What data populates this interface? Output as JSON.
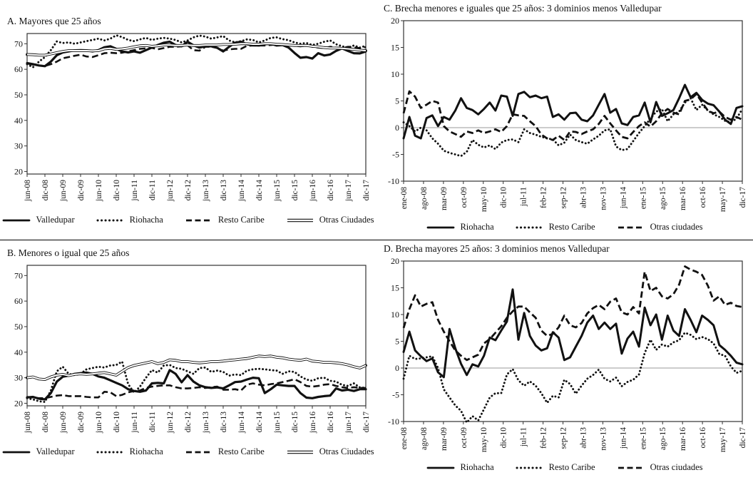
{
  "figure_title": "",
  "colors": {
    "line": "#111111",
    "zero_gridline": "#9a9a9a",
    "frame": "#333333",
    "background": "#ffffff"
  },
  "chart_data": [
    {
      "type": "line",
      "title": "A. Mayores que 25 años",
      "xlabel": "",
      "ylabel": "",
      "ylim": [
        19,
        74
      ],
      "yticks": [
        70,
        60,
        50,
        40,
        30,
        20
      ],
      "zero_gridline": false,
      "legend_position": "bottom",
      "x_tick_labels": [
        "jun-08",
        "dic-08",
        "jun-09",
        "dic-09",
        "jun-10",
        "dic-10",
        "jun-11",
        "dic-11",
        "jun-12",
        "dic-12",
        "jun-13",
        "dic-13",
        "jun-14",
        "dic-14",
        "jun-15",
        "dic-15",
        "jun-16",
        "dic-16",
        "jun-17",
        "dic-17"
      ],
      "series": [
        {
          "name": "Valledupar",
          "line_style": "solid",
          "line_width": 3.2,
          "values": [
            62.4,
            62.0,
            61.5,
            61.2,
            63.0,
            65.5,
            66.6,
            67.0,
            67.4,
            67.5,
            67.4,
            67.0,
            67.5,
            68.6,
            69.0,
            68.0,
            67.0,
            66.6,
            67.0,
            66.5,
            67.5,
            68.5,
            69.5,
            70.4,
            70.8,
            69.5,
            69.0,
            70.8,
            69.4,
            68.5,
            69.0,
            69.0,
            68.4,
            67.0,
            68.8,
            70.4,
            70.8,
            69.8,
            69.4,
            69.3,
            69.8,
            70.0,
            69.3,
            69.5,
            68.5,
            66.4,
            64.5,
            64.8,
            64.2,
            66.3,
            65.4,
            65.8,
            67.2,
            68.2,
            67.2,
            66.3,
            66.2,
            67.0
          ]
        },
        {
          "name": "Riohacha",
          "line_style": "dotted",
          "line_width": 2.9,
          "values": [
            62.0,
            60.8,
            63.0,
            64.8,
            67.5,
            70.9,
            70.3,
            70.5,
            70.0,
            70.5,
            71.0,
            71.5,
            72.0,
            71.3,
            72.0,
            73.3,
            72.6,
            71.5,
            71.0,
            71.7,
            72.3,
            71.5,
            72.0,
            72.3,
            72.0,
            71.5,
            70.5,
            71.3,
            72.5,
            73.2,
            72.8,
            72.0,
            72.5,
            73.0,
            71.3,
            70.5,
            71.0,
            71.7,
            71.5,
            70.5,
            71.3,
            72.3,
            72.5,
            71.8,
            71.4,
            70.5,
            70.0,
            70.3,
            69.5,
            70.0,
            70.8,
            71.3,
            69.8,
            69.0,
            68.5,
            69.3,
            68.5,
            69.2
          ]
        },
        {
          "name": "Resto Caribe",
          "line_style": "dashed",
          "line_width": 2.6,
          "values": [
            62.3,
            61.8,
            61.5,
            61.3,
            62.0,
            63.0,
            64.3,
            64.8,
            65.3,
            65.7,
            65.0,
            64.8,
            65.5,
            66.3,
            66.5,
            66.3,
            66.5,
            67.0,
            67.5,
            68.0,
            68.2,
            68.4,
            67.8,
            68.3,
            68.8,
            68.8,
            69.0,
            69.4,
            67.5,
            67.3,
            68.8,
            68.8,
            68.4,
            67.3,
            67.8,
            68.0,
            68.0,
            69.2,
            69.3,
            69.3,
            69.3,
            69.5,
            69.7,
            69.5,
            69.3,
            69.2,
            69.0,
            69.3,
            68.8,
            68.5,
            68.3,
            68.8,
            68.5,
            68.3,
            68.8,
            68.5,
            68.3,
            68.7
          ]
        },
        {
          "name": "Otras Ciudades",
          "line_style": "double",
          "line_width": 3.8,
          "values": [
            65.8,
            65.7,
            65.5,
            65.5,
            66.0,
            66.5,
            67.0,
            67.3,
            67.3,
            67.3,
            67.3,
            67.2,
            67.3,
            68.0,
            68.2,
            67.8,
            68.0,
            68.3,
            68.8,
            69.2,
            69.3,
            69.0,
            69.2,
            69.5,
            69.5,
            69.3,
            69.3,
            69.5,
            69.3,
            69.3,
            69.5,
            69.5,
            69.5,
            69.7,
            69.7,
            69.8,
            70.0,
            70.0,
            69.8,
            69.8,
            70.0,
            70.0,
            69.8,
            69.7,
            69.5,
            69.3,
            69.3,
            69.3,
            69.0,
            68.8,
            68.5,
            68.3,
            68.3,
            68.2,
            68.0,
            67.8,
            67.5,
            67.3
          ]
        }
      ]
    },
    {
      "type": "line",
      "title": "B. Menores o igual que 25 años",
      "xlabel": "",
      "ylabel": "",
      "ylim": [
        19,
        74
      ],
      "yticks": [
        70,
        60,
        50,
        40,
        30,
        20
      ],
      "zero_gridline": false,
      "legend_position": "bottom",
      "x_tick_labels": [
        "jun-08",
        "dic-08",
        "jun-09",
        "dic-09",
        "jun-10",
        "dic-10",
        "jun-11",
        "dic-11",
        "jun-12",
        "dic-12",
        "jun-13",
        "dic-13",
        "jun-14",
        "dic-14",
        "jun-15",
        "dic-15",
        "jun-16",
        "dic-16",
        "jun-17",
        "dic-17"
      ],
      "series": [
        {
          "name": "Valledupar",
          "line_style": "solid",
          "line_width": 3.2,
          "values": [
            22.3,
            22.5,
            21.8,
            21.5,
            24.0,
            28.5,
            30.4,
            30.8,
            31.5,
            31.8,
            32.0,
            31.5,
            30.5,
            30.0,
            29.0,
            28.0,
            27.0,
            25.5,
            24.8,
            24.5,
            25.0,
            27.8,
            28.0,
            27.8,
            33.0,
            31.5,
            28.2,
            31.0,
            28.5,
            27.0,
            26.3,
            26.0,
            26.2,
            25.8,
            27.0,
            28.3,
            28.5,
            29.3,
            30.0,
            29.8,
            24.0,
            25.5,
            27.3,
            27.0,
            26.8,
            26.8,
            24.0,
            22.2,
            22.0,
            22.5,
            22.8,
            23.0,
            25.8,
            25.0,
            25.3,
            24.8,
            25.5,
            25.5
          ]
        },
        {
          "name": "Riohacha",
          "line_style": "dotted",
          "line_width": 2.9,
          "values": [
            22.0,
            21.5,
            20.8,
            20.5,
            25.0,
            32.5,
            34.3,
            31.5,
            31.0,
            31.5,
            33.3,
            33.8,
            34.3,
            34.0,
            34.8,
            35.0,
            36.3,
            27.5,
            24.2,
            26.5,
            30.0,
            33.0,
            32.0,
            34.8,
            35.0,
            33.8,
            33.5,
            32.5,
            31.5,
            33.8,
            34.0,
            32.3,
            32.8,
            32.3,
            30.8,
            31.3,
            31.0,
            32.8,
            33.3,
            33.5,
            33.3,
            33.0,
            32.8,
            31.5,
            32.5,
            32.3,
            30.5,
            29.3,
            28.8,
            29.8,
            30.0,
            28.8,
            28.5,
            27.2,
            26.8,
            27.8,
            26.2,
            26.0
          ]
        },
        {
          "name": "Resto Caribe",
          "line_style": "dashed",
          "line_width": 2.6,
          "values": [
            22.5,
            22.3,
            22.0,
            22.0,
            22.5,
            23.0,
            23.2,
            22.8,
            22.8,
            22.8,
            22.5,
            22.3,
            22.3,
            24.5,
            24.3,
            22.8,
            23.3,
            24.3,
            24.8,
            25.0,
            26.0,
            26.5,
            26.8,
            27.0,
            27.0,
            26.3,
            25.8,
            25.8,
            26.0,
            26.3,
            26.0,
            26.3,
            26.5,
            25.3,
            25.3,
            25.5,
            25.0,
            27.3,
            27.8,
            27.3,
            27.0,
            27.5,
            27.8,
            28.3,
            28.8,
            29.4,
            28.3,
            26.8,
            26.5,
            26.8,
            27.3,
            27.5,
            26.8,
            26.3,
            26.0,
            26.3,
            26.0,
            26.0
          ]
        },
        {
          "name": "Otras Ciudades",
          "line_style": "double",
          "line_width": 3.8,
          "values": [
            30.0,
            30.3,
            29.5,
            29.3,
            30.3,
            31.0,
            31.3,
            30.8,
            31.3,
            31.5,
            31.3,
            31.5,
            31.8,
            32.0,
            31.5,
            31.0,
            32.5,
            34.0,
            34.8,
            35.3,
            35.8,
            36.3,
            35.5,
            36.0,
            37.0,
            36.8,
            36.3,
            36.3,
            36.0,
            35.8,
            36.0,
            36.3,
            36.3,
            36.5,
            36.8,
            37.0,
            37.3,
            37.5,
            38.0,
            38.5,
            38.3,
            38.5,
            38.0,
            37.8,
            37.3,
            37.0,
            36.8,
            37.3,
            36.5,
            36.3,
            36.0,
            36.0,
            35.8,
            35.5,
            35.0,
            34.3,
            33.8,
            34.8
          ]
        }
      ]
    },
    {
      "type": "line",
      "title": "C. Brecha menores e iguales que 25 años: 3 dominios menos Valledupar",
      "xlabel": "",
      "ylabel": "",
      "ylim": [
        -10,
        20
      ],
      "yticks": [
        20,
        15,
        10,
        5,
        0,
        -5,
        -10
      ],
      "zero_gridline": true,
      "legend_position": "bottom",
      "x_tick_labels": [
        "ene-08",
        "ago-08",
        "mar-09",
        "oct-09",
        "may-10",
        "dic-10",
        "jul-11",
        "feb-12",
        "sep-12",
        "abr-13",
        "nov-13",
        "jun-14",
        "ene-15",
        "ago-15",
        "mar-16",
        "oct-16",
        "may-17",
        "dic-17"
      ],
      "series": [
        {
          "name": "Riohacha",
          "line_style": "solid",
          "line_width": 3.0,
          "values": [
            -2.0,
            2.0,
            -1.5,
            -2.0,
            1.8,
            2.3,
            0.3,
            2.0,
            1.5,
            3.2,
            5.5,
            3.7,
            3.3,
            2.5,
            3.5,
            4.7,
            3.2,
            6.0,
            5.8,
            2.2,
            6.3,
            6.7,
            5.7,
            6.0,
            5.5,
            5.8,
            2.0,
            2.5,
            1.5,
            2.7,
            2.8,
            1.5,
            1.2,
            2.3,
            4.3,
            6.3,
            2.8,
            3.5,
            0.8,
            0.5,
            2.0,
            2.3,
            4.7,
            1.0,
            4.8,
            2.2,
            2.7,
            3.3,
            5.5,
            8.0,
            5.7,
            6.5,
            5.2,
            4.5,
            4.2,
            3.0,
            1.5,
            0.7,
            3.7,
            4.0
          ]
        },
        {
          "name": "Resto Caribe",
          "line_style": "dotted",
          "line_width": 2.9,
          "values": [
            1.0,
            0.3,
            -0.7,
            0.0,
            -0.5,
            -2.0,
            -3.0,
            -4.3,
            -4.7,
            -5.0,
            -5.3,
            -4.5,
            -2.3,
            -3.2,
            -3.7,
            -3.3,
            -4.0,
            -2.8,
            -2.3,
            -2.2,
            -2.7,
            -0.3,
            -1.0,
            -1.3,
            -1.7,
            -2.0,
            -2.2,
            -3.3,
            -2.8,
            -1.3,
            -2.3,
            -2.7,
            -3.0,
            -2.2,
            -1.5,
            -0.5,
            -0.3,
            -3.5,
            -4.2,
            -4.0,
            -2.5,
            -1.0,
            0.3,
            1.7,
            3.0,
            3.5,
            1.2,
            2.5,
            3.0,
            4.7,
            5.5,
            3.3,
            4.3,
            3.2,
            2.5,
            2.0,
            1.3,
            1.0,
            1.7,
            3.5
          ]
        },
        {
          "name": "Otras ciudades",
          "line_style": "dashed",
          "line_width": 2.8,
          "values": [
            2.7,
            6.8,
            5.8,
            3.7,
            4.3,
            5.0,
            4.7,
            0.3,
            -0.7,
            -1.2,
            -1.7,
            -0.7,
            -1.0,
            -0.5,
            -1.0,
            -0.7,
            -0.3,
            -0.8,
            0.3,
            2.5,
            2.3,
            2.2,
            1.2,
            0.3,
            -1.3,
            -2.0,
            -2.3,
            -1.5,
            -2.3,
            -0.7,
            -0.8,
            -1.2,
            -0.7,
            -0.3,
            0.7,
            2.2,
            0.8,
            -0.5,
            -1.7,
            -2.0,
            -0.8,
            0.3,
            1.0,
            0.2,
            1.2,
            2.7,
            3.5,
            2.8,
            2.5,
            5.0,
            5.3,
            6.3,
            4.7,
            3.2,
            2.7,
            3.0,
            2.0,
            1.5,
            2.0,
            1.5
          ]
        }
      ]
    },
    {
      "type": "line",
      "title": "D. Brecha mayores 25 años: 3 dominios menos Valledupar",
      "xlabel": "",
      "ylabel": "",
      "ylim": [
        -10,
        20
      ],
      "yticks": [
        20,
        15,
        10,
        5,
        0,
        -5,
        -10
      ],
      "zero_gridline": true,
      "legend_position": "bottom",
      "x_tick_labels": [
        "ene-08",
        "ago-08",
        "mar-09",
        "oct-09",
        "may-10",
        "dic-10",
        "jul-11",
        "feb-12",
        "sep-12",
        "abr-13",
        "nov-13",
        "jun-14",
        "ene-15",
        "ago-15",
        "mar-16",
        "oct-16",
        "may-17",
        "dic-17"
      ],
      "series": [
        {
          "name": "Riohacha",
          "line_style": "solid",
          "line_width": 3.0,
          "values": [
            3.0,
            6.8,
            3.3,
            2.2,
            1.3,
            1.8,
            -0.8,
            -1.7,
            7.3,
            3.7,
            0.8,
            -1.3,
            0.7,
            0.3,
            2.3,
            5.7,
            5.2,
            7.0,
            8.7,
            14.7,
            5.3,
            10.3,
            6.0,
            4.2,
            3.3,
            3.7,
            6.7,
            5.7,
            1.5,
            2.0,
            4.0,
            6.0,
            8.5,
            9.8,
            7.3,
            8.5,
            7.3,
            8.3,
            2.7,
            5.5,
            6.8,
            4.0,
            11.3,
            8.0,
            10.0,
            5.3,
            9.8,
            7.0,
            6.0,
            11.0,
            9.0,
            6.7,
            9.8,
            9.0,
            8.0,
            4.3,
            3.4,
            2.3,
            1.0,
            0.7
          ]
        },
        {
          "name": "Resto Caribe",
          "line_style": "dotted",
          "line_width": 2.9,
          "values": [
            -2.0,
            2.3,
            1.7,
            1.8,
            2.0,
            2.2,
            0.0,
            -4.0,
            -5.5,
            -7.0,
            -8.0,
            -10.2,
            -9.0,
            -9.8,
            -7.7,
            -5.5,
            -4.7,
            -4.7,
            -1.2,
            -0.2,
            -2.3,
            -3.3,
            -2.5,
            -3.3,
            -4.7,
            -6.5,
            -5.2,
            -5.5,
            -2.2,
            -3.0,
            -4.8,
            -3.3,
            -2.0,
            -1.3,
            -0.3,
            -2.0,
            -2.5,
            -1.8,
            -3.4,
            -2.6,
            -2.2,
            -1.2,
            2.8,
            5.3,
            3.4,
            4.4,
            4.0,
            4.8,
            5.2,
            6.6,
            6.2,
            5.4,
            5.8,
            5.4,
            4.6,
            2.6,
            2.3,
            0.3,
            -0.9,
            -0.5
          ]
        },
        {
          "name": "Otras ciudades",
          "line_style": "dashed",
          "line_width": 2.8,
          "values": [
            7.5,
            11.0,
            13.6,
            11.5,
            12.0,
            12.3,
            9.0,
            6.8,
            5.0,
            3.3,
            2.3,
            1.5,
            2.0,
            2.5,
            4.6,
            5.4,
            6.6,
            7.8,
            9.4,
            10.6,
            11.5,
            11.5,
            10.4,
            9.4,
            7.0,
            6.0,
            6.4,
            7.6,
            9.8,
            8.0,
            7.6,
            8.4,
            10.2,
            11.2,
            11.8,
            11.0,
            12.4,
            13.0,
            10.4,
            10.0,
            11.4,
            10.2,
            18.0,
            14.4,
            15.0,
            13.4,
            13.0,
            13.8,
            15.6,
            19.0,
            18.4,
            18.0,
            17.4,
            15.4,
            12.6,
            13.4,
            11.8,
            12.2,
            11.6,
            11.4
          ]
        }
      ]
    }
  ]
}
